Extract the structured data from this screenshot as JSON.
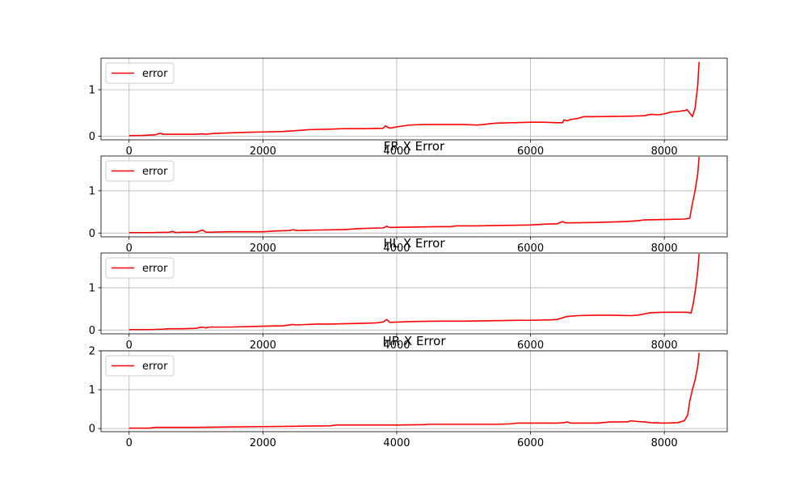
{
  "chart_data": [
    {
      "type": "line",
      "title": "",
      "xlabel": "",
      "ylabel": "",
      "xlim": [
        -420,
        8940
      ],
      "ylim": [
        -0.08,
        1.68
      ],
      "xticks": [
        "0",
        "2000",
        "4000",
        "6000",
        "8000"
      ],
      "yticks": [
        "0",
        "1"
      ],
      "grid": true,
      "legend": {
        "position": "top-left",
        "entries": [
          "error"
        ]
      },
      "series": [
        {
          "name": "error",
          "color": "#ff0000",
          "x": [
            0,
            200,
            400,
            430,
            470,
            500,
            800,
            1000,
            1100,
            1150,
            1200,
            1300,
            1500,
            1700,
            2000,
            2300,
            2500,
            2700,
            3000,
            3200,
            3500,
            3800,
            3830,
            3870,
            3900,
            4000,
            4050,
            4200,
            4400,
            4600,
            5000,
            5200,
            5300,
            5400,
            5500,
            6000,
            6200,
            6400,
            6480,
            6500,
            6550,
            6600,
            6700,
            6800,
            7000,
            7500,
            7700,
            7800,
            7900,
            8000,
            8100,
            8200,
            8300,
            8340,
            8380,
            8420,
            8460,
            8500,
            8520
          ],
          "y": [
            0.01,
            0.015,
            0.03,
            0.05,
            0.06,
            0.04,
            0.04,
            0.04,
            0.05,
            0.04,
            0.05,
            0.06,
            0.07,
            0.08,
            0.09,
            0.1,
            0.12,
            0.14,
            0.15,
            0.16,
            0.16,
            0.17,
            0.22,
            0.19,
            0.17,
            0.2,
            0.21,
            0.24,
            0.25,
            0.25,
            0.25,
            0.24,
            0.25,
            0.27,
            0.28,
            0.3,
            0.3,
            0.29,
            0.29,
            0.35,
            0.33,
            0.36,
            0.38,
            0.42,
            0.42,
            0.43,
            0.44,
            0.47,
            0.46,
            0.48,
            0.52,
            0.53,
            0.55,
            0.57,
            0.5,
            0.42,
            0.6,
            1.1,
            1.6
          ]
        }
      ]
    },
    {
      "type": "line",
      "title": "FR X Error",
      "xlabel": "",
      "ylabel": "",
      "xlim": [
        -420,
        8940
      ],
      "ylim": [
        -0.09,
        1.82
      ],
      "xticks": [
        "0",
        "2000",
        "4000",
        "6000",
        "8000"
      ],
      "yticks": [
        "0",
        "1"
      ],
      "grid": true,
      "legend": {
        "position": "top-left",
        "entries": [
          "error"
        ]
      },
      "series": [
        {
          "name": "error",
          "color": "#ff0000",
          "x": [
            0,
            300,
            600,
            650,
            700,
            800,
            1000,
            1100,
            1150,
            1200,
            1500,
            1800,
            2000,
            2200,
            2400,
            2450,
            2500,
            2800,
            3200,
            3500,
            3800,
            3850,
            3900,
            4200,
            4600,
            4800,
            4900,
            5200,
            5600,
            6000,
            6200,
            6400,
            6480,
            6520,
            6600,
            7000,
            7400,
            7600,
            7700,
            8000,
            8300,
            8380,
            8420,
            8460,
            8500,
            8520
          ],
          "y": [
            0.01,
            0.01,
            0.02,
            0.04,
            0.01,
            0.02,
            0.02,
            0.07,
            0.02,
            0.02,
            0.03,
            0.03,
            0.03,
            0.05,
            0.06,
            0.08,
            0.06,
            0.07,
            0.08,
            0.11,
            0.12,
            0.16,
            0.13,
            0.14,
            0.15,
            0.15,
            0.17,
            0.17,
            0.18,
            0.19,
            0.21,
            0.22,
            0.27,
            0.24,
            0.24,
            0.25,
            0.27,
            0.29,
            0.31,
            0.32,
            0.33,
            0.35,
            0.7,
            1.0,
            1.4,
            1.8
          ]
        }
      ]
    },
    {
      "type": "line",
      "title": "HL X Error",
      "xlabel": "",
      "ylabel": "",
      "xlim": [
        -420,
        8940
      ],
      "ylim": [
        -0.09,
        1.82
      ],
      "xticks": [
        "0",
        "2000",
        "4000",
        "6000",
        "8000"
      ],
      "yticks": [
        "0",
        "1"
      ],
      "grid": true,
      "legend": {
        "position": "top-left",
        "entries": [
          "error"
        ]
      },
      "series": [
        {
          "name": "error",
          "color": "#ff0000",
          "x": [
            0,
            300,
            500,
            600,
            800,
            1000,
            1050,
            1100,
            1150,
            1200,
            1500,
            2000,
            2300,
            2450,
            2500,
            2800,
            3000,
            3500,
            3700,
            3800,
            3850,
            3900,
            4200,
            4600,
            5000,
            5400,
            5800,
            6000,
            6300,
            6400,
            6500,
            6550,
            6700,
            7000,
            7200,
            7500,
            7600,
            7700,
            7800,
            8000,
            8200,
            8350,
            8400,
            8430,
            8470,
            8500,
            8520
          ],
          "y": [
            0.01,
            0.01,
            0.02,
            0.03,
            0.03,
            0.04,
            0.06,
            0.07,
            0.05,
            0.07,
            0.07,
            0.09,
            0.1,
            0.13,
            0.12,
            0.14,
            0.14,
            0.16,
            0.17,
            0.19,
            0.25,
            0.18,
            0.2,
            0.21,
            0.21,
            0.22,
            0.23,
            0.23,
            0.24,
            0.25,
            0.3,
            0.32,
            0.34,
            0.35,
            0.35,
            0.34,
            0.35,
            0.38,
            0.41,
            0.42,
            0.42,
            0.42,
            0.4,
            0.6,
            1.0,
            1.4,
            1.8
          ]
        }
      ]
    },
    {
      "type": "line",
      "title": "HR X Error",
      "xlabel": "",
      "ylabel": "",
      "xlim": [
        -420,
        8940
      ],
      "ylim": [
        -0.08,
        2.0
      ],
      "xticks": [
        "0",
        "2000",
        "4000",
        "6000",
        "8000"
      ],
      "yticks": [
        "0",
        "1",
        "2"
      ],
      "grid": true,
      "legend": {
        "position": "top-left",
        "entries": [
          "error"
        ]
      },
      "series": [
        {
          "name": "error",
          "color": "#ff0000",
          "x": [
            0,
            300,
            400,
            500,
            1000,
            1500,
            2000,
            2500,
            3000,
            3100,
            3500,
            3800,
            4000,
            4400,
            4500,
            5000,
            5500,
            5700,
            5800,
            6000,
            6400,
            6500,
            6550,
            6600,
            7000,
            7200,
            7450,
            7500,
            7600,
            7700,
            7800,
            8000,
            8200,
            8300,
            8350,
            8380,
            8420,
            8460,
            8500,
            8520
          ],
          "y": [
            0.01,
            0.01,
            0.03,
            0.03,
            0.03,
            0.04,
            0.05,
            0.06,
            0.07,
            0.09,
            0.09,
            0.09,
            0.09,
            0.1,
            0.11,
            0.11,
            0.11,
            0.12,
            0.14,
            0.14,
            0.14,
            0.15,
            0.17,
            0.14,
            0.14,
            0.17,
            0.17,
            0.2,
            0.18,
            0.17,
            0.15,
            0.14,
            0.15,
            0.2,
            0.35,
            0.7,
            1.0,
            1.25,
            1.6,
            1.95
          ]
        }
      ]
    }
  ]
}
